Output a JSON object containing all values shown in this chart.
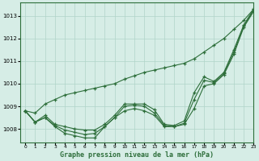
{
  "title": "Graphe pression niveau de la mer (hPa)",
  "xlim": [
    -0.5,
    23
  ],
  "ylim": [
    1007.4,
    1013.6
  ],
  "yticks": [
    1008,
    1009,
    1010,
    1011,
    1012,
    1013
  ],
  "xticks": [
    0,
    1,
    2,
    3,
    4,
    5,
    6,
    7,
    8,
    9,
    10,
    11,
    12,
    13,
    14,
    15,
    16,
    17,
    18,
    19,
    20,
    21,
    22,
    23
  ],
  "background_color": "#d6ede6",
  "grid_color": "#b0d4c8",
  "line_color": "#2d6e3a",
  "series": [
    [
      1008.8,
      1008.3,
      1008.5,
      1008.1,
      1007.8,
      1007.7,
      1007.6,
      1007.6,
      1008.1,
      1008.5,
      1008.8,
      1008.9,
      1008.8,
      1008.6,
      1008.1,
      1008.1,
      1008.2,
      1008.9,
      1009.9,
      1010.0,
      1010.4,
      1011.3,
      1012.5,
      1013.2
    ],
    [
      1008.8,
      1008.3,
      1008.5,
      1008.15,
      1007.95,
      1007.85,
      1007.75,
      1007.8,
      1008.1,
      1008.5,
      1009.0,
      1009.05,
      1009.0,
      1008.7,
      1008.15,
      1008.1,
      1008.25,
      1009.3,
      1010.15,
      1010.05,
      1010.45,
      1011.4,
      1012.55,
      1013.25
    ],
    [
      1008.8,
      1008.3,
      1008.6,
      1008.2,
      1008.1,
      1008.0,
      1007.95,
      1007.95,
      1008.2,
      1008.6,
      1009.1,
      1009.1,
      1009.1,
      1008.85,
      1008.2,
      1008.15,
      1008.35,
      1009.6,
      1010.3,
      1010.1,
      1010.5,
      1011.5,
      1012.6,
      1013.3
    ],
    [
      1008.8,
      1008.7,
      1009.1,
      1009.3,
      1009.5,
      1009.6,
      1009.7,
      1009.8,
      1009.9,
      1010.0,
      1010.2,
      1010.35,
      1010.5,
      1010.6,
      1010.7,
      1010.8,
      1010.9,
      1011.1,
      1011.4,
      1011.7,
      1012.0,
      1012.4,
      1012.8,
      1013.3
    ]
  ]
}
